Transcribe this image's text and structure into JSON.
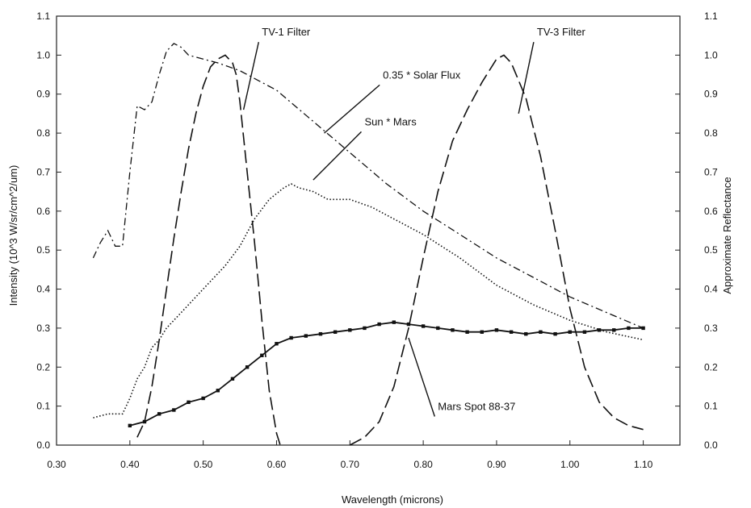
{
  "chart_data": {
    "type": "line",
    "title": "",
    "xlabel": "Wavelength (microns)",
    "ylabel_left": "Intensity (10^3 W/sr/cm^2/um)",
    "ylabel_right": "Approximate Reflectance",
    "xlim": [
      0.3,
      1.15
    ],
    "ylim_left": [
      0.0,
      1.1
    ],
    "ylim_right": [
      0.0,
      1.1
    ],
    "x_ticks": [
      "0.30",
      "0.40",
      "0.50",
      "0.60",
      "0.70",
      "0.80",
      "0.90",
      "1.00",
      "1.10"
    ],
    "y_ticks_left": [
      "0.0",
      "0.1",
      "0.2",
      "0.3",
      "0.4",
      "0.5",
      "0.6",
      "0.7",
      "0.8",
      "0.9",
      "1.0",
      "1.1"
    ],
    "y_ticks_right": [
      "0.0",
      "0.1",
      "0.2",
      "0.3",
      "0.4",
      "0.5",
      "0.6",
      "0.7",
      "0.8",
      "0.9",
      "1.0",
      "1.1"
    ],
    "grid": false,
    "legend": "none",
    "series": [
      {
        "key": "tv1",
        "style": "long-dash",
        "x": [
          0.41,
          0.42,
          0.43,
          0.44,
          0.45,
          0.46,
          0.47,
          0.48,
          0.49,
          0.5,
          0.51,
          0.52,
          0.53,
          0.54,
          0.545,
          0.55,
          0.56,
          0.57,
          0.58,
          0.59,
          0.6,
          0.605
        ],
        "y": [
          0.02,
          0.06,
          0.15,
          0.27,
          0.4,
          0.53,
          0.65,
          0.76,
          0.85,
          0.92,
          0.97,
          0.99,
          1.0,
          0.98,
          0.95,
          0.88,
          0.7,
          0.52,
          0.32,
          0.14,
          0.03,
          0.0
        ]
      },
      {
        "key": "tv3",
        "style": "long-dash",
        "x": [
          0.7,
          0.72,
          0.74,
          0.76,
          0.78,
          0.8,
          0.82,
          0.84,
          0.86,
          0.88,
          0.9,
          0.91,
          0.92,
          0.94,
          0.96,
          0.98,
          1.0,
          1.02,
          1.04,
          1.06,
          1.08,
          1.1
        ],
        "y": [
          0.0,
          0.02,
          0.06,
          0.15,
          0.3,
          0.48,
          0.65,
          0.78,
          0.86,
          0.93,
          0.99,
          1.0,
          0.98,
          0.89,
          0.74,
          0.55,
          0.35,
          0.2,
          0.11,
          0.07,
          0.05,
          0.04
        ]
      },
      {
        "key": "solar",
        "style": "dash-dot",
        "x": [
          0.35,
          0.36,
          0.37,
          0.38,
          0.39,
          0.4,
          0.41,
          0.42,
          0.43,
          0.44,
          0.45,
          0.46,
          0.47,
          0.48,
          0.5,
          0.52,
          0.55,
          0.6,
          0.65,
          0.7,
          0.75,
          0.8,
          0.85,
          0.9,
          0.95,
          1.0,
          1.05,
          1.1
        ],
        "y": [
          0.48,
          0.52,
          0.55,
          0.51,
          0.51,
          0.7,
          0.87,
          0.86,
          0.88,
          0.95,
          1.01,
          1.03,
          1.02,
          1.0,
          0.99,
          0.98,
          0.96,
          0.91,
          0.83,
          0.75,
          0.67,
          0.6,
          0.54,
          0.48,
          0.43,
          0.38,
          0.34,
          0.3
        ]
      },
      {
        "key": "sunmars",
        "style": "dotted",
        "x": [
          0.35,
          0.37,
          0.39,
          0.4,
          0.41,
          0.42,
          0.43,
          0.44,
          0.45,
          0.47,
          0.5,
          0.53,
          0.55,
          0.57,
          0.59,
          0.61,
          0.62,
          0.63,
          0.65,
          0.67,
          0.7,
          0.73,
          0.75,
          0.8,
          0.85,
          0.9,
          0.95,
          1.0,
          1.05,
          1.1
        ],
        "y": [
          0.07,
          0.08,
          0.08,
          0.12,
          0.17,
          0.2,
          0.25,
          0.27,
          0.3,
          0.34,
          0.4,
          0.46,
          0.51,
          0.58,
          0.63,
          0.66,
          0.67,
          0.66,
          0.65,
          0.63,
          0.63,
          0.61,
          0.59,
          0.54,
          0.48,
          0.41,
          0.36,
          0.32,
          0.29,
          0.27
        ]
      },
      {
        "key": "marsspot",
        "style": "solid-with-points",
        "x": [
          0.4,
          0.42,
          0.44,
          0.46,
          0.48,
          0.5,
          0.52,
          0.54,
          0.56,
          0.58,
          0.6,
          0.62,
          0.64,
          0.66,
          0.68,
          0.7,
          0.72,
          0.74,
          0.76,
          0.78,
          0.8,
          0.82,
          0.84,
          0.86,
          0.88,
          0.9,
          0.92,
          0.94,
          0.96,
          0.98,
          1.0,
          1.02,
          1.04,
          1.06,
          1.08,
          1.1
        ],
        "y": [
          0.05,
          0.06,
          0.08,
          0.09,
          0.11,
          0.12,
          0.14,
          0.17,
          0.2,
          0.23,
          0.26,
          0.275,
          0.28,
          0.285,
          0.29,
          0.295,
          0.3,
          0.31,
          0.315,
          0.31,
          0.305,
          0.3,
          0.295,
          0.29,
          0.29,
          0.295,
          0.29,
          0.285,
          0.29,
          0.285,
          0.29,
          0.29,
          0.295,
          0.295,
          0.3,
          0.3
        ]
      }
    ],
    "annotations": [
      {
        "key": "tv1",
        "text": "TV-1 Filter",
        "x": 0.58,
        "y": 1.05,
        "target_x": 0.555,
        "target_y": 0.86
      },
      {
        "key": "solar",
        "text": "0.35 * Solar Flux",
        "x": 0.745,
        "y": 0.94,
        "target_x": 0.665,
        "target_y": 0.8
      },
      {
        "key": "sunmars",
        "text": "Sun * Mars",
        "x": 0.72,
        "y": 0.82,
        "target_x": 0.65,
        "target_y": 0.68
      },
      {
        "key": "tv3",
        "text": "TV-3 Filter",
        "x": 0.955,
        "y": 1.05,
        "target_x": 0.93,
        "target_y": 0.85
      },
      {
        "key": "marsspot",
        "text": "Mars Spot 88-37",
        "x": 0.82,
        "y": 0.09,
        "target_x": 0.78,
        "target_y": 0.275
      }
    ]
  }
}
